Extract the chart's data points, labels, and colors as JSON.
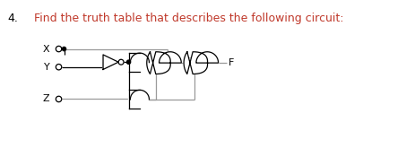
{
  "title_number": "4.",
  "title_text": "Find the truth table that describes the following circuit:",
  "title_color_number": "#000000",
  "title_color_text": "#c0392b",
  "output_label": "F",
  "bg_color": "#ffffff",
  "gate_color": "#000000",
  "wire_color": "#999999",
  "wire_color_dark": "#000000",
  "dot_color": "#000000"
}
